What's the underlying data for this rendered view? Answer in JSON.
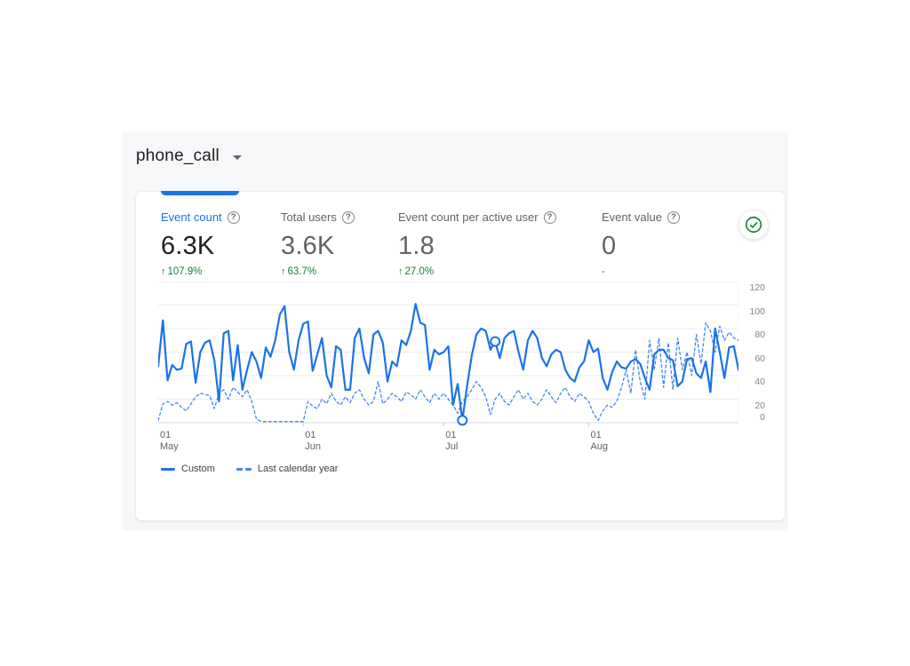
{
  "title": {
    "text": "phone_call"
  },
  "metrics": [
    {
      "label": "Event count",
      "value": "6.3K",
      "delta_arrow": "↑",
      "delta": "107.9%",
      "positive": true,
      "selected": true
    },
    {
      "label": "Total users",
      "value": "3.6K",
      "delta_arrow": "↑",
      "delta": "63.7%",
      "positive": true,
      "selected": false
    },
    {
      "label": "Event count per active user",
      "value": "1.8",
      "delta_arrow": "↑",
      "delta": "27.0%",
      "positive": true,
      "selected": false
    },
    {
      "label": "Event value",
      "value": "0",
      "delta_arrow": "",
      "delta": "-",
      "positive": false,
      "selected": false
    }
  ],
  "help_icon_glyph": "?",
  "data_quality": {
    "icon": "check-circle",
    "color": "#188038"
  },
  "colors": {
    "accent_blue": "#1a73e8",
    "compare_blue": "#4285f4",
    "positive_green": "#188038",
    "panel_bg": "#f6f7f9",
    "grid": "#e9ebee",
    "axis_text": "#80868b"
  },
  "chart_data": {
    "type": "line",
    "title": "",
    "xlabel": "",
    "ylabel": "",
    "ylim": [
      0,
      120
    ],
    "grid": true,
    "legend_position": "bottom",
    "y_ticks": [
      120,
      100,
      80,
      60,
      40,
      20,
      0
    ],
    "x_tick_labels": [
      [
        "01",
        "May"
      ],
      [
        "01",
        "Jun"
      ],
      [
        "01",
        "Jul"
      ],
      [
        "01",
        "Aug"
      ]
    ],
    "x_tick_indices": [
      0,
      31,
      61,
      92
    ],
    "series": [
      {
        "name": "Custom",
        "style": "solid",
        "color": "#1a73e8",
        "width": 2.2,
        "values": [
          48,
          87,
          36,
          49,
          45,
          46,
          67,
          69,
          34,
          60,
          68,
          70,
          53,
          18,
          76,
          78,
          36,
          66,
          28,
          45,
          60,
          52,
          38,
          64,
          56,
          70,
          92,
          99,
          60,
          45,
          70,
          84,
          86,
          44,
          58,
          72,
          40,
          30,
          65,
          62,
          28,
          28,
          72,
          80,
          55,
          42,
          75,
          78,
          68,
          35,
          52,
          48,
          70,
          66,
          78,
          101,
          85,
          83,
          45,
          62,
          58,
          60,
          65,
          15,
          33,
          2,
          31,
          57,
          75,
          80,
          78,
          62,
          69,
          55,
          72,
          76,
          78,
          60,
          45,
          70,
          78,
          72,
          55,
          48,
          58,
          62,
          60,
          45,
          38,
          35,
          47,
          52,
          70,
          60,
          63,
          38,
          28,
          43,
          52,
          47,
          46,
          52,
          54,
          50,
          38,
          28,
          58,
          62,
          62,
          55,
          53,
          31,
          35,
          54,
          55,
          42,
          38,
          52,
          26,
          80,
          60,
          38,
          64,
          65,
          45
        ]
      },
      {
        "name": "Last calendar year",
        "style": "dashed",
        "color": "#4285f4",
        "width": 1.3,
        "values": [
          2,
          16,
          18,
          15,
          17,
          13,
          10,
          16,
          22,
          25,
          24,
          23,
          12,
          25,
          28,
          20,
          30,
          26,
          22,
          28,
          18,
          3,
          1,
          1,
          1,
          1,
          1,
          1,
          1,
          1,
          1,
          1,
          18,
          14,
          12,
          20,
          16,
          25,
          18,
          15,
          22,
          17,
          25,
          28,
          20,
          15,
          18,
          35,
          16,
          20,
          25,
          22,
          18,
          26,
          24,
          20,
          28,
          22,
          17,
          25,
          20,
          25,
          20,
          15,
          8,
          18,
          22,
          28,
          35,
          30,
          22,
          7,
          20,
          25,
          18,
          15,
          22,
          28,
          20,
          25,
          18,
          15,
          20,
          28,
          22,
          17,
          25,
          30,
          22,
          18,
          25,
          22,
          18,
          8,
          2,
          10,
          15,
          13,
          18,
          30,
          45,
          25,
          62,
          35,
          20,
          70,
          45,
          72,
          30,
          68,
          28,
          72,
          45,
          60,
          40,
          75,
          50,
          85,
          78,
          60,
          82,
          70,
          77,
          72,
          70
        ]
      }
    ],
    "markers": [
      {
        "series": 0,
        "index": 65
      },
      {
        "series": 0,
        "index": 72
      }
    ]
  }
}
